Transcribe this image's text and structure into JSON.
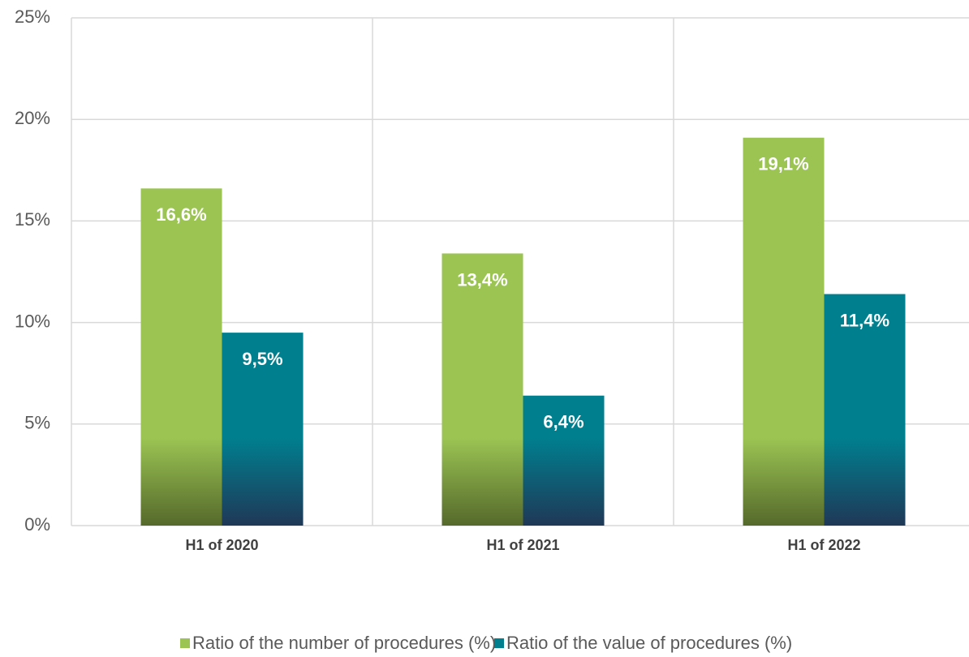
{
  "chart_data": {
    "type": "bar",
    "categories": [
      "H1 of 2020",
      "H1 of 2021",
      "H1 of 2022"
    ],
    "series": [
      {
        "name": "Ratio of the number of procedures (%)",
        "color": "#9bc453",
        "values": [
          16.6,
          13.4,
          19.1
        ],
        "value_labels": [
          "16,6%",
          "13,4%",
          "19,1%"
        ]
      },
      {
        "name": "Ratio of the value of procedures (%)",
        "color": "#007f8f",
        "values": [
          9.5,
          6.4,
          11.4
        ],
        "value_labels": [
          "9,5%",
          "6,4%",
          "11,4%"
        ]
      }
    ],
    "ylim": [
      0,
      25
    ],
    "yticks": [
      {
        "value": 0,
        "label": "0%"
      },
      {
        "value": 5,
        "label": "5%"
      },
      {
        "value": 10,
        "label": "10%"
      },
      {
        "value": 15,
        "label": "15%"
      },
      {
        "value": 20,
        "label": "20%"
      },
      {
        "value": 25,
        "label": "25%"
      }
    ],
    "grid": true,
    "legend": "bottom"
  }
}
